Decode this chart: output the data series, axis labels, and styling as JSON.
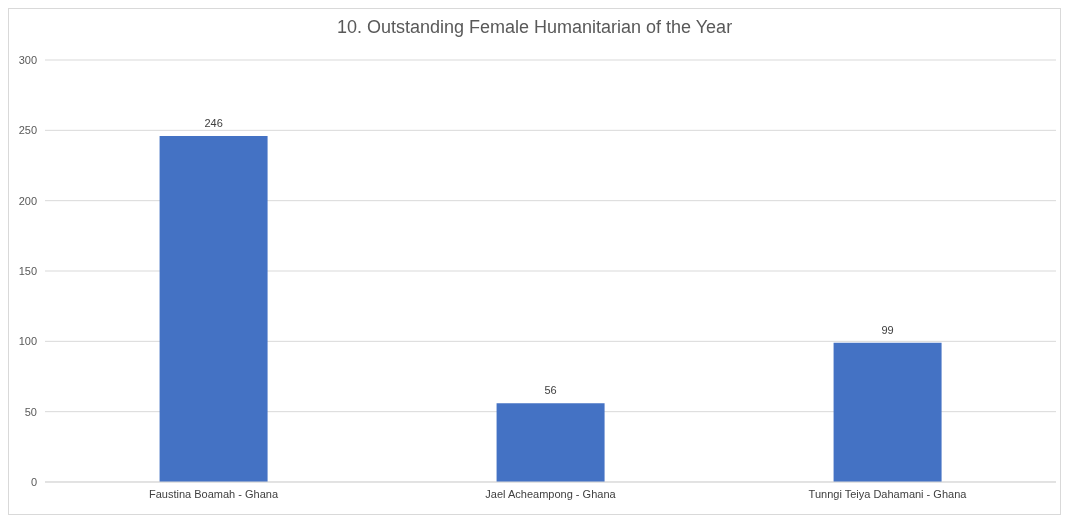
{
  "chart_data": {
    "type": "bar",
    "title": "10. Outstanding Female Humanitarian of the Year",
    "categories": [
      "Faustina Boamah - Ghana",
      "Jael Acheampong - Ghana",
      "Tunngi Teiya Dahamani - Ghana"
    ],
    "values": [
      246,
      56,
      99
    ],
    "color": "#4472c4",
    "ylim": [
      0,
      300
    ],
    "yticks": [
      0,
      50,
      100,
      150,
      200,
      250,
      300
    ],
    "grid": "y",
    "data_labels": true
  }
}
